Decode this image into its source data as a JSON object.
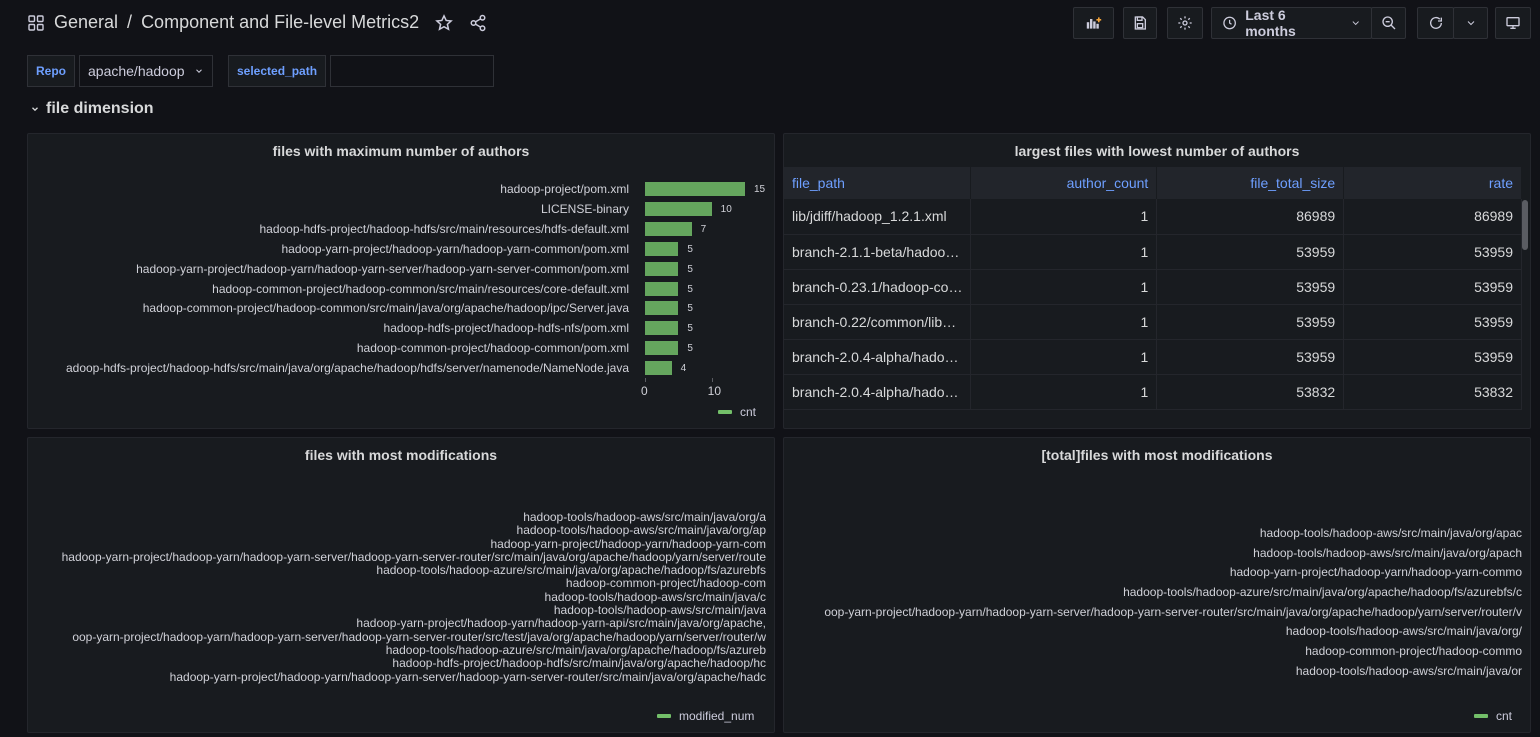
{
  "header": {
    "folder": "General",
    "separator": "/",
    "title": "Component and File-level Metrics2",
    "time_range": "Last 6 months"
  },
  "variables": {
    "repo_label": "Repo",
    "repo_value": "apache/hadoop",
    "path_label": "selected_path",
    "path_value": ""
  },
  "row": {
    "title": "file dimension"
  },
  "panel1": {
    "title": "files with maximum number of authors",
    "legend": "cnt",
    "chart_data": {
      "type": "bar",
      "orientation": "horizontal",
      "categories": [
        "hadoop-project/pom.xml",
        "LICENSE-binary",
        "hadoop-hdfs-project/hadoop-hdfs/src/main/resources/hdfs-default.xml",
        "hadoop-yarn-project/hadoop-yarn/hadoop-yarn-common/pom.xml",
        "hadoop-yarn-project/hadoop-yarn/hadoop-yarn-server/hadoop-yarn-server-common/pom.xml",
        "hadoop-common-project/hadoop-common/src/main/resources/core-default.xml",
        "hadoop-common-project/hadoop-common/src/main/java/org/apache/hadoop/ipc/Server.java",
        "hadoop-hdfs-project/hadoop-hdfs-nfs/pom.xml",
        "hadoop-common-project/hadoop-common/pom.xml",
        "adoop-hdfs-project/hadoop-hdfs/src/main/java/org/apache/hadoop/hdfs/server/namenode/NameNode.java"
      ],
      "values": [
        15,
        10,
        7,
        5,
        5,
        5,
        5,
        5,
        5,
        4
      ],
      "xticks": [
        "0",
        "10"
      ],
      "xlim": [
        0,
        15
      ],
      "series": [
        {
          "name": "cnt",
          "color": "#73bf69"
        }
      ]
    }
  },
  "panel2": {
    "title": "largest files with lowest number of authors",
    "columns": [
      "file_path",
      "author_count",
      "file_total_size",
      "rate"
    ],
    "rows": [
      [
        "lib/jdiff/hadoop_1.2.1.xml",
        "1",
        "86989",
        "86989"
      ],
      [
        "branch-2.1.1-beta/hadoo…",
        "1",
        "53959",
        "53959"
      ],
      [
        "branch-0.23.1/hadoop-co…",
        "1",
        "53959",
        "53959"
      ],
      [
        "branch-0.22/common/lib…",
        "1",
        "53959",
        "53959"
      ],
      [
        "branch-2.0.4-alpha/hado…",
        "1",
        "53959",
        "53959"
      ],
      [
        "branch-2.0.4-alpha/hado…",
        "1",
        "53832",
        "53832"
      ]
    ]
  },
  "panel3": {
    "title": "files with most modifications",
    "legend": "modified_num",
    "labels": [
      "hadoop-tools/hadoop-aws/src/main/java/org/a",
      "hadoop-tools/hadoop-aws/src/main/java/org/ap",
      "hadoop-yarn-project/hadoop-yarn/hadoop-yarn-com",
      "hadoop-yarn-project/hadoop-yarn/hadoop-yarn-server/hadoop-yarn-server-router/src/main/java/org/apache/hadoop/yarn/server/route",
      "hadoop-tools/hadoop-azure/src/main/java/org/apache/hadoop/fs/azurebfs",
      "hadoop-common-project/hadoop-com",
      "hadoop-tools/hadoop-aws/src/main/java/c",
      "hadoop-tools/hadoop-aws/src/main/java",
      "hadoop-yarn-project/hadoop-yarn/hadoop-yarn-api/src/main/java/org/apache,",
      "oop-yarn-project/hadoop-yarn/hadoop-yarn-server/hadoop-yarn-server-router/src/test/java/org/apache/hadoop/yarn/server/router/w",
      "hadoop-tools/hadoop-azure/src/main/java/org/apache/hadoop/fs/azureb",
      "hadoop-hdfs-project/hadoop-hdfs/src/main/java/org/apache/hadoop/hc",
      "hadoop-yarn-project/hadoop-yarn/hadoop-yarn-server/hadoop-yarn-server-router/src/main/java/org/apache/hadc"
    ]
  },
  "panel4": {
    "title": "[total]files with most modifications",
    "legend": "cnt",
    "labels": [
      "hadoop-tools/hadoop-aws/src/main/java/org/apac",
      "hadoop-tools/hadoop-aws/src/main/java/org/apach",
      "hadoop-yarn-project/hadoop-yarn/hadoop-yarn-commo",
      "hadoop-tools/hadoop-azure/src/main/java/org/apache/hadoop/fs/azurebfs/c",
      "oop-yarn-project/hadoop-yarn/hadoop-yarn-server/hadoop-yarn-server-router/src/main/java/org/apache/hadoop/yarn/server/router/v",
      "hadoop-tools/hadoop-aws/src/main/java/org/",
      "hadoop-common-project/hadoop-commo",
      "hadoop-tools/hadoop-aws/src/main/java/or"
    ]
  }
}
